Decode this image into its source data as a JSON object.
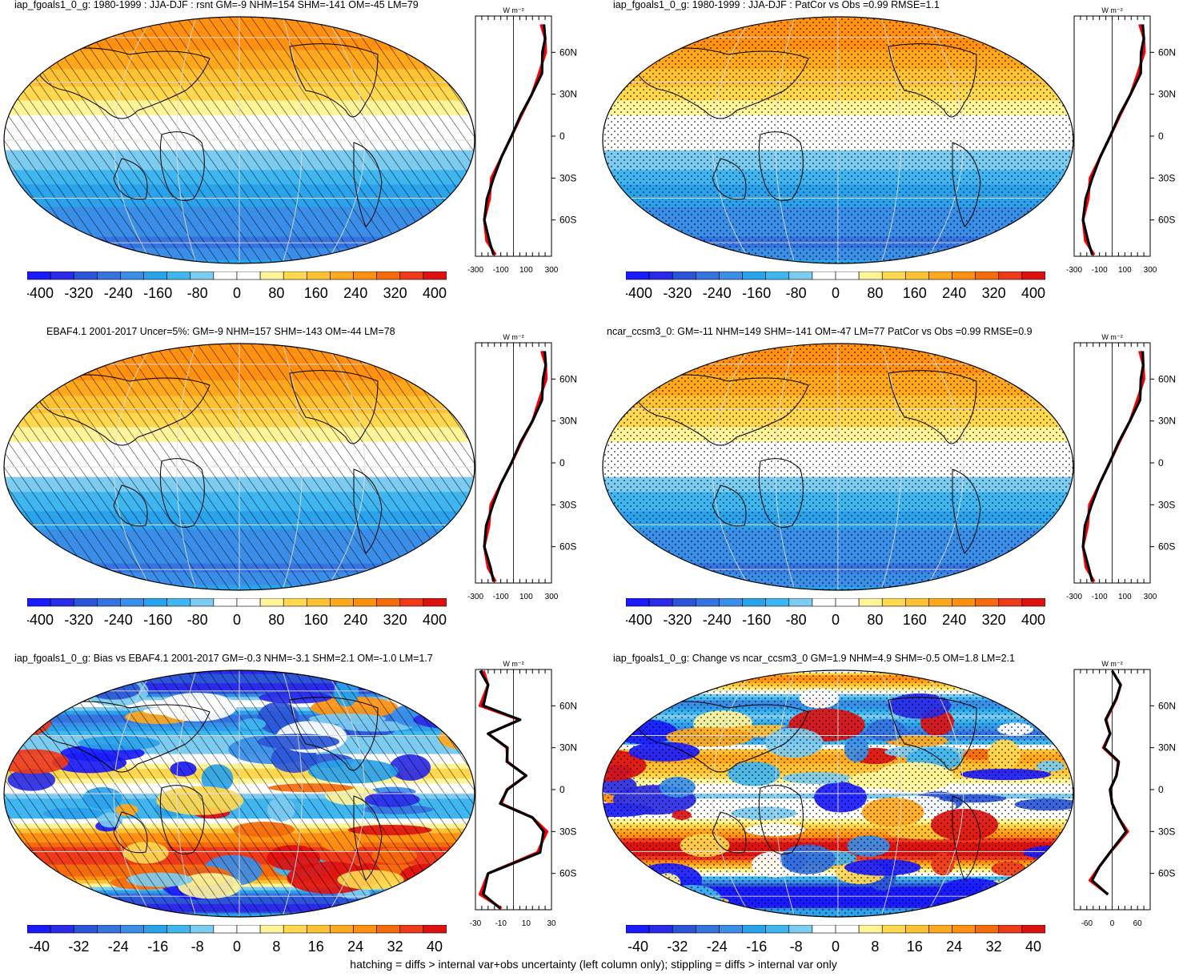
{
  "footnote": "hatching = diffs > internal var+obs uncertainty (left column only); stippling = diffs > internal var only",
  "colors": {
    "scale": [
      "#1a1aff",
      "#2a2ae8",
      "#2b55d8",
      "#3573e0",
      "#3a8ee8",
      "#2aa2ec",
      "#40b6f0",
      "#7ccbf0",
      "#ffffff",
      "#ffffff",
      "#fff49a",
      "#ffd850",
      "#ffc232",
      "#ffa81c",
      "#ff9010",
      "#f56a0a",
      "#ee3a1a",
      "#de1010"
    ],
    "obs": "#0000ff",
    "model_a": "#ff0000",
    "model_b": "#000000"
  },
  "panels": [
    {
      "id": "p1",
      "title": "iap_fgoals1_0_g: 1980-1999 : JJA-DJF : rsnt GM=-9 NHM=154 SHM=-141 OM=-45 LM=79",
      "field": "abs",
      "pattern": "hatch",
      "cbar_labels": [
        "-400",
        "-320",
        "-240",
        "-160",
        "-80",
        "0",
        "80",
        "160",
        "240",
        "320",
        "400"
      ],
      "zonal": {
        "unit": "W m⁻²",
        "xticks": [
          "-300",
          "-100",
          "100",
          "300"
        ],
        "xlim": [
          -300,
          300
        ],
        "lat_labels": [
          "60N",
          "30N",
          "0",
          "30S",
          "60S"
        ]
      }
    },
    {
      "id": "p2",
      "title": "iap_fgoals1_0_g: 1980-1999 : JJA-DJF : PatCor vs Obs =0.99 RMSE=1.1",
      "field": "abs",
      "pattern": "stipple",
      "cbar_labels": [
        "-400",
        "-320",
        "-240",
        "-160",
        "-80",
        "0",
        "80",
        "160",
        "240",
        "320",
        "400"
      ],
      "zonal": {
        "unit": "W m⁻²",
        "xticks": [
          "-300",
          "-100",
          "100",
          "300"
        ],
        "xlim": [
          -300,
          300
        ],
        "lat_labels": [
          "60N",
          "30N",
          "0",
          "30S",
          "60S"
        ]
      }
    },
    {
      "id": "p3",
      "title": "EBAF4.1 2001-2017 Uncer=5%: GM=-9 NHM=157 SHM=-143 OM=-44 LM=78",
      "field": "abs",
      "pattern": "hatch",
      "cbar_labels": [
        "-400",
        "-320",
        "-240",
        "-160",
        "-80",
        "0",
        "80",
        "160",
        "240",
        "320",
        "400"
      ],
      "zonal": {
        "unit": "W m⁻²",
        "xticks": [
          "-300",
          "-100",
          "100",
          "300"
        ],
        "xlim": [
          -300,
          300
        ],
        "lat_labels": [
          "60N",
          "30N",
          "0",
          "30S",
          "60S"
        ]
      }
    },
    {
      "id": "p4",
      "title": "ncar_ccsm3_0: GM=-11 NHM=149 SHM=-141 OM=-47 LM=77 PatCor vs Obs =0.99 RMSE=0.9",
      "field": "abs",
      "pattern": "stipple",
      "cbar_labels": [
        "-400",
        "-320",
        "-240",
        "-160",
        "-80",
        "0",
        "80",
        "160",
        "240",
        "320",
        "400"
      ],
      "zonal": {
        "unit": "W m⁻²",
        "xticks": [
          "-300",
          "-100",
          "100",
          "300"
        ],
        "xlim": [
          -300,
          300
        ],
        "lat_labels": [
          "60N",
          "30N",
          "0",
          "30S",
          "60S"
        ]
      }
    },
    {
      "id": "p5",
      "title": "iap_fgoals1_0_g: Bias vs EBAF4.1 2001-2017 GM=-0.3 NHM=-3.1 SHM=2.1 OM=-1.0 LM=1.7",
      "field": "diff",
      "pattern": "hatch",
      "cbar_labels": [
        "-40",
        "-32",
        "-24",
        "-16",
        "-8",
        "0",
        "8",
        "16",
        "24",
        "32",
        "40"
      ],
      "zonal": {
        "unit": "W m⁻²",
        "xticks": [
          "-30",
          "-10",
          "10",
          "30"
        ],
        "xlim": [
          -30,
          30
        ],
        "lat_labels": [
          "60N",
          "30N",
          "0",
          "30S",
          "60S"
        ]
      }
    },
    {
      "id": "p6",
      "title": "iap_fgoals1_0_g: Change vs ncar_ccsm3_0 GM=1.9 NHM=4.9 SHM=-0.5 OM=1.8 LM=2.1",
      "field": "diff",
      "pattern": "stipple",
      "cbar_labels": [
        "-40",
        "-32",
        "-24",
        "-16",
        "-8",
        "0",
        "8",
        "16",
        "24",
        "32",
        "40"
      ],
      "zonal": {
        "unit": "W m⁻²",
        "xticks": [
          "-60",
          "0",
          "60"
        ],
        "xlim": [
          -90,
          90
        ],
        "lat_labels": [
          "60N",
          "30N",
          "0",
          "30S",
          "60S"
        ]
      }
    }
  ],
  "chart_data": [
    {
      "type": "heatmap",
      "panel": "p1",
      "title": "iap_fgoals1_0_g: 1980-1999 : JJA-DJF : rsnt GM=-9 NHM=154 SHM=-141 OM=-45 LM=79",
      "zonal_mean": {
        "lat": [
          80,
          70,
          60,
          45,
          30,
          15,
          0,
          -15,
          -30,
          -45,
          -60,
          -75,
          -85
        ],
        "values": [
          230,
          250,
          240,
          215,
          145,
          60,
          -15,
          -95,
          -165,
          -200,
          -230,
          -200,
          -150
        ]
      }
    },
    {
      "type": "heatmap",
      "panel": "p2",
      "title": "iap_fgoals1_0_g: 1980-1999 : JJA-DJF : PatCor vs Obs =0.99 RMSE=1.1",
      "zonal_mean": {
        "lat": [
          80,
          70,
          60,
          45,
          30,
          15,
          0,
          -15,
          -30,
          -45,
          -60,
          -75,
          -85
        ],
        "values": [
          230,
          250,
          240,
          215,
          145,
          60,
          -15,
          -95,
          -165,
          -200,
          -230,
          -200,
          -150
        ]
      }
    },
    {
      "type": "heatmap",
      "panel": "p3",
      "title": "EBAF4.1 2001-2017 Uncer=5%: GM=-9 NHM=157 SHM=-143 OM=-44 LM=78",
      "zonal_mean": {
        "lat": [
          80,
          70,
          60,
          45,
          30,
          15,
          0,
          -15,
          -30,
          -45,
          -60,
          -75,
          -85
        ],
        "values": [
          235,
          255,
          245,
          215,
          150,
          60,
          -15,
          -100,
          -170,
          -205,
          -230,
          -190,
          -150
        ]
      }
    },
    {
      "type": "heatmap",
      "panel": "p4",
      "title": "ncar_ccsm3_0: GM=-11 NHM=149 SHM=-141 OM=-47 LM=77 PatCor vs Obs =0.99 RMSE=0.9",
      "zonal_mean": {
        "lat": [
          80,
          70,
          60,
          45,
          30,
          15,
          0,
          -15,
          -30,
          -45,
          -60,
          -75,
          -85
        ],
        "values": [
          230,
          245,
          238,
          210,
          140,
          55,
          -20,
          -100,
          -170,
          -205,
          -230,
          -195,
          -150
        ]
      }
    },
    {
      "type": "heatmap",
      "panel": "p5",
      "title": "iap_fgoals1_0_g: Bias vs EBAF4.1 2001-2017 GM=-0.3 NHM=-3.1 SHM=2.1 OM=-1.0 LM=1.7",
      "zonal_mean": {
        "lat": [
          85,
          75,
          60,
          50,
          40,
          30,
          20,
          10,
          0,
          -10,
          -20,
          -30,
          -45,
          -60,
          -75,
          -85
        ],
        "values": [
          -25,
          -20,
          -25,
          5,
          -20,
          -5,
          -5,
          10,
          -5,
          -10,
          15,
          25,
          20,
          -20,
          -25,
          -10
        ]
      }
    },
    {
      "type": "heatmap",
      "panel": "p6",
      "title": "iap_fgoals1_0_g: Change vs ncar_ccsm3_0 GM=1.9 NHM=4.9 SHM=-0.5 OM=1.8 LM=2.1",
      "zonal_mean": {
        "lat": [
          85,
          75,
          65,
          50,
          40,
          30,
          20,
          10,
          0,
          -10,
          -20,
          -30,
          -45,
          -55,
          -65,
          -75
        ],
        "values": [
          0,
          20,
          10,
          -15,
          -5,
          -20,
          15,
          10,
          -5,
          0,
          15,
          35,
          -5,
          -30,
          -50,
          -10
        ]
      }
    }
  ]
}
